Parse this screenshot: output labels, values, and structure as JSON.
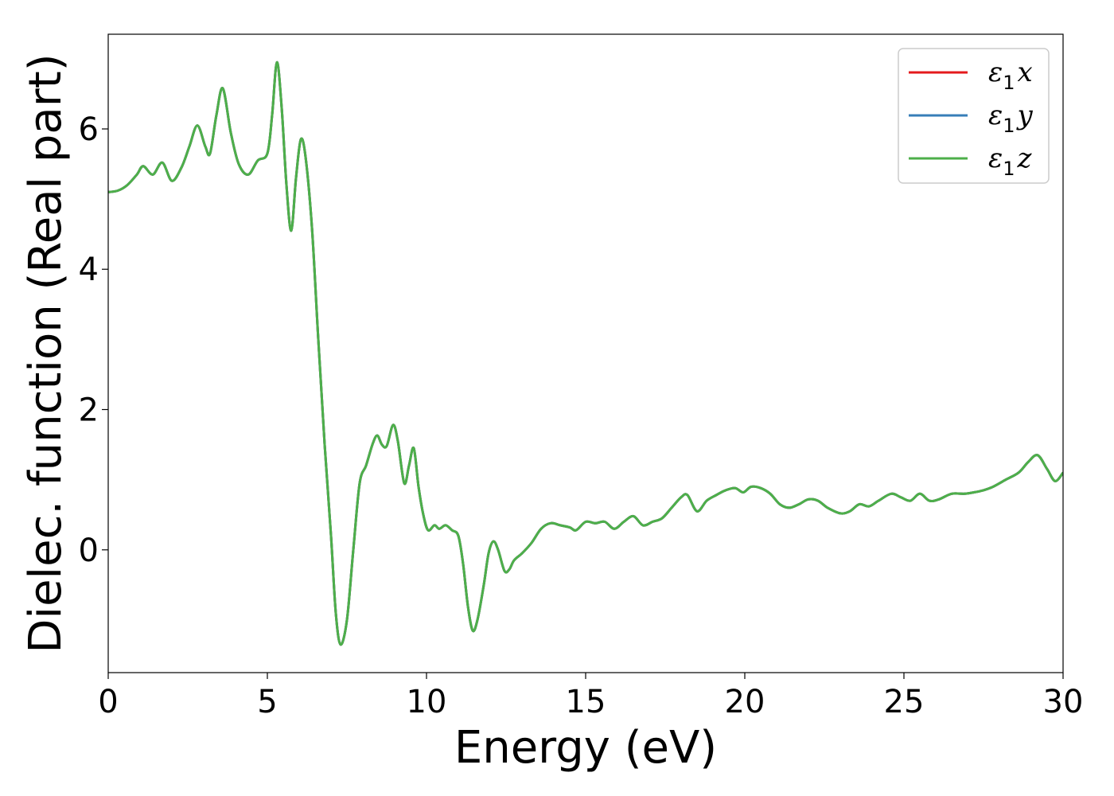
{
  "chart_data": {
    "type": "line",
    "title": "",
    "xlabel": "Energy (eV)",
    "ylabel": "Dielec. function (Real part)",
    "xlim": [
      0,
      30
    ],
    "ylim": [
      -1.75,
      7.35
    ],
    "xticks": [
      0,
      5,
      10,
      15,
      20,
      25,
      30
    ],
    "yticks": [
      0,
      2,
      4,
      6
    ],
    "grid": false,
    "legend_position": "top-right",
    "series": [
      {
        "name_base": "ε",
        "name_sub": "1",
        "name_axis": "x",
        "color": "#e41a1c",
        "points": [
          [
            0,
            5.1
          ],
          [
            0.3,
            5.12
          ],
          [
            0.6,
            5.2
          ],
          [
            0.9,
            5.35
          ],
          [
            1.1,
            5.47
          ],
          [
            1.4,
            5.35
          ],
          [
            1.7,
            5.52
          ],
          [
            2.0,
            5.26
          ],
          [
            2.3,
            5.45
          ],
          [
            2.55,
            5.75
          ],
          [
            2.8,
            6.05
          ],
          [
            3.05,
            5.75
          ],
          [
            3.2,
            5.65
          ],
          [
            3.4,
            6.2
          ],
          [
            3.6,
            6.58
          ],
          [
            3.85,
            5.95
          ],
          [
            4.1,
            5.5
          ],
          [
            4.4,
            5.35
          ],
          [
            4.7,
            5.55
          ],
          [
            5.0,
            5.65
          ],
          [
            5.15,
            6.2
          ],
          [
            5.3,
            6.95
          ],
          [
            5.45,
            6.3
          ],
          [
            5.6,
            5.2
          ],
          [
            5.75,
            4.55
          ],
          [
            5.9,
            5.3
          ],
          [
            6.05,
            5.85
          ],
          [
            6.2,
            5.6
          ],
          [
            6.4,
            4.6
          ],
          [
            6.6,
            3.0
          ],
          [
            6.8,
            1.5
          ],
          [
            7.0,
            0.2
          ],
          [
            7.15,
            -0.9
          ],
          [
            7.3,
            -1.35
          ],
          [
            7.5,
            -1.0
          ],
          [
            7.7,
            0.0
          ],
          [
            7.9,
            0.95
          ],
          [
            8.1,
            1.2
          ],
          [
            8.3,
            1.5
          ],
          [
            8.45,
            1.63
          ],
          [
            8.6,
            1.5
          ],
          [
            8.75,
            1.48
          ],
          [
            8.95,
            1.78
          ],
          [
            9.1,
            1.55
          ],
          [
            9.3,
            0.95
          ],
          [
            9.45,
            1.2
          ],
          [
            9.6,
            1.45
          ],
          [
            9.75,
            0.9
          ],
          [
            9.9,
            0.5
          ],
          [
            10.05,
            0.28
          ],
          [
            10.25,
            0.35
          ],
          [
            10.4,
            0.3
          ],
          [
            10.6,
            0.35
          ],
          [
            10.8,
            0.28
          ],
          [
            11.0,
            0.2
          ],
          [
            11.15,
            -0.2
          ],
          [
            11.3,
            -0.8
          ],
          [
            11.45,
            -1.15
          ],
          [
            11.6,
            -1.0
          ],
          [
            11.8,
            -0.5
          ],
          [
            11.95,
            -0.05
          ],
          [
            12.1,
            0.12
          ],
          [
            12.25,
            0.0
          ],
          [
            12.45,
            -0.3
          ],
          [
            12.6,
            -0.28
          ],
          [
            12.75,
            -0.15
          ],
          [
            13.0,
            -0.05
          ],
          [
            13.3,
            0.1
          ],
          [
            13.6,
            0.3
          ],
          [
            13.9,
            0.38
          ],
          [
            14.2,
            0.35
          ],
          [
            14.5,
            0.32
          ],
          [
            14.7,
            0.28
          ],
          [
            15.0,
            0.4
          ],
          [
            15.3,
            0.38
          ],
          [
            15.6,
            0.4
          ],
          [
            15.9,
            0.3
          ],
          [
            16.2,
            0.4
          ],
          [
            16.5,
            0.48
          ],
          [
            16.8,
            0.35
          ],
          [
            17.1,
            0.4
          ],
          [
            17.4,
            0.45
          ],
          [
            17.7,
            0.6
          ],
          [
            18.0,
            0.75
          ],
          [
            18.2,
            0.78
          ],
          [
            18.5,
            0.55
          ],
          [
            18.8,
            0.7
          ],
          [
            19.1,
            0.78
          ],
          [
            19.4,
            0.85
          ],
          [
            19.7,
            0.88
          ],
          [
            19.95,
            0.82
          ],
          [
            20.2,
            0.9
          ],
          [
            20.5,
            0.88
          ],
          [
            20.8,
            0.8
          ],
          [
            21.1,
            0.65
          ],
          [
            21.4,
            0.6
          ],
          [
            21.7,
            0.65
          ],
          [
            22.0,
            0.72
          ],
          [
            22.3,
            0.7
          ],
          [
            22.6,
            0.6
          ],
          [
            23.0,
            0.52
          ],
          [
            23.3,
            0.55
          ],
          [
            23.6,
            0.65
          ],
          [
            23.9,
            0.62
          ],
          [
            24.2,
            0.7
          ],
          [
            24.6,
            0.8
          ],
          [
            24.9,
            0.75
          ],
          [
            25.2,
            0.7
          ],
          [
            25.5,
            0.8
          ],
          [
            25.8,
            0.7
          ],
          [
            26.1,
            0.72
          ],
          [
            26.5,
            0.8
          ],
          [
            26.9,
            0.8
          ],
          [
            27.2,
            0.82
          ],
          [
            27.5,
            0.85
          ],
          [
            27.8,
            0.9
          ],
          [
            28.2,
            1.0
          ],
          [
            28.6,
            1.1
          ],
          [
            28.9,
            1.25
          ],
          [
            29.2,
            1.35
          ],
          [
            29.5,
            1.15
          ],
          [
            29.75,
            0.98
          ],
          [
            30.0,
            1.1
          ]
        ]
      },
      {
        "name_base": "ε",
        "name_sub": "1",
        "name_axis": "y",
        "color": "#377eb8",
        "same_as": 0
      },
      {
        "name_base": "ε",
        "name_sub": "1",
        "name_axis": "z",
        "color": "#4daf4a",
        "same_as": 0
      }
    ]
  }
}
